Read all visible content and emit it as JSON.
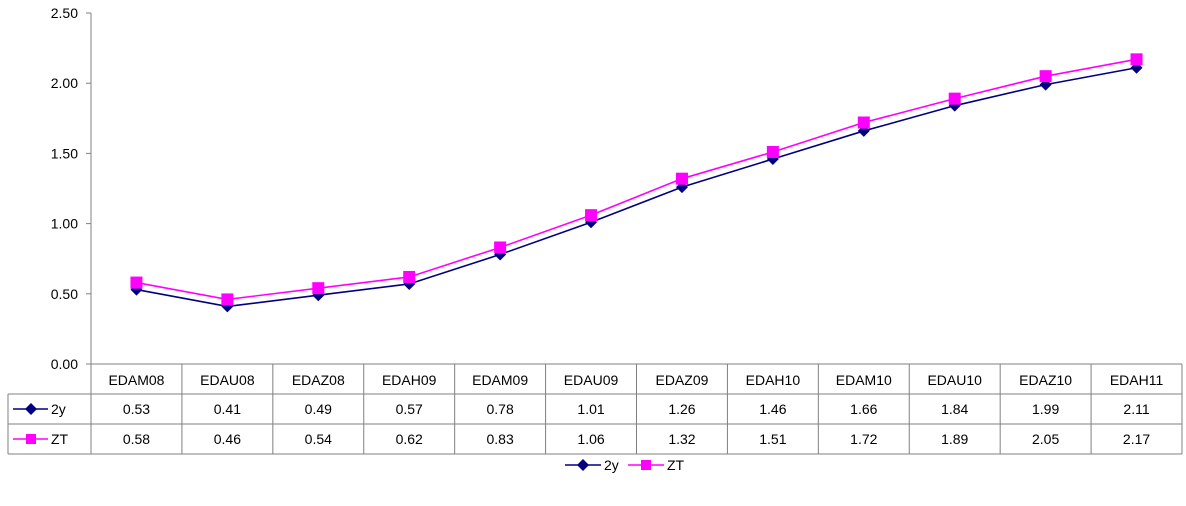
{
  "chart_data": {
    "type": "line",
    "title": "",
    "xlabel": "",
    "ylabel": "",
    "ylim": [
      0,
      2.5
    ],
    "yticks": [
      "0.00",
      "0.50",
      "1.00",
      "1.50",
      "2.00",
      "2.50"
    ],
    "grid": false,
    "legend": "bottom-center",
    "data_table": true,
    "categories": [
      "EDAM08",
      "EDAU08",
      "EDAZ08",
      "EDAH09",
      "EDAM09",
      "EDAU09",
      "EDAZ09",
      "EDAH10",
      "EDAM10",
      "EDAU10",
      "EDAZ10",
      "EDAH11"
    ],
    "series": [
      {
        "name": "2y",
        "color": "#000080",
        "marker": "diamond",
        "values": [
          0.53,
          0.41,
          0.49,
          0.57,
          0.78,
          1.01,
          1.26,
          1.46,
          1.66,
          1.84,
          1.99,
          2.11
        ],
        "labels": [
          "0.53",
          "0.41",
          "0.49",
          "0.57",
          "0.78",
          "1.01",
          "1.26",
          "1.46",
          "1.66",
          "1.84",
          "1.99",
          "2.11"
        ]
      },
      {
        "name": "ZT",
        "color": "#FF00FF",
        "marker": "square",
        "values": [
          0.58,
          0.46,
          0.54,
          0.62,
          0.83,
          1.06,
          1.32,
          1.51,
          1.72,
          1.89,
          2.05,
          2.17
        ],
        "labels": [
          "0.58",
          "0.46",
          "0.54",
          "0.62",
          "0.83",
          "1.06",
          "1.32",
          "1.51",
          "1.72",
          "1.89",
          "2.05",
          "2.17"
        ]
      }
    ]
  }
}
